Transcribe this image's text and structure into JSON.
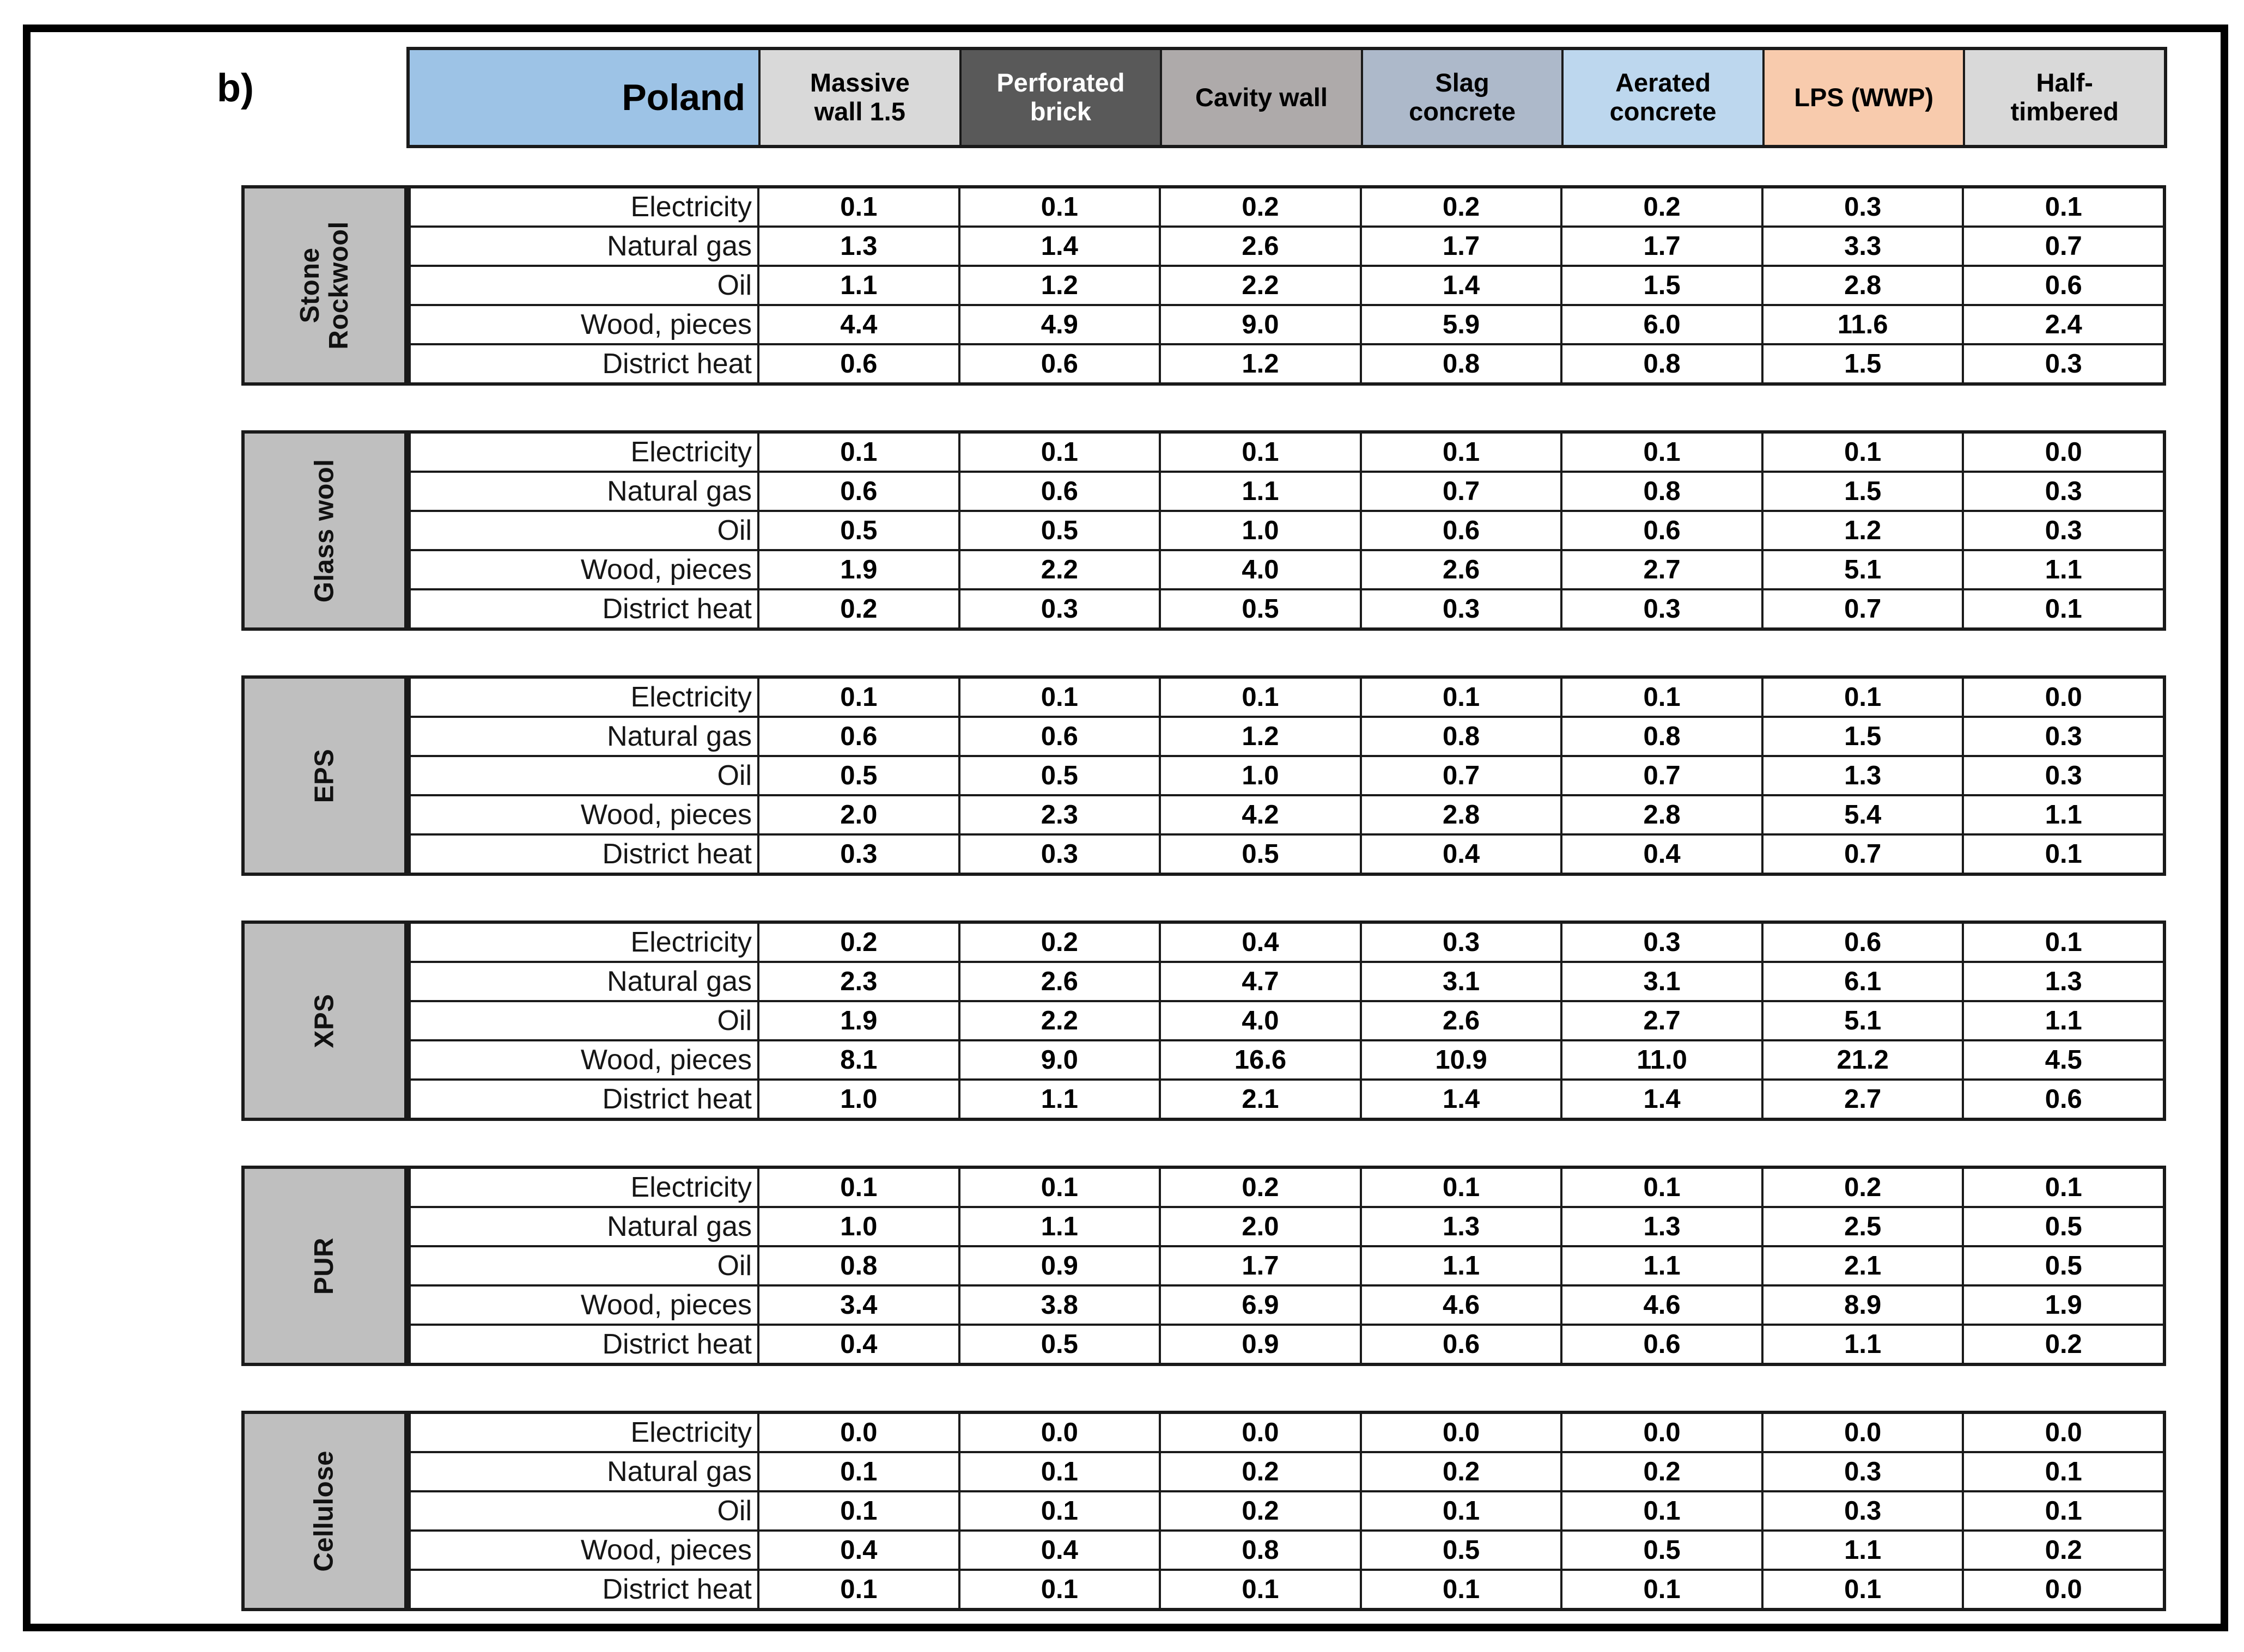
{
  "figure_label": "b)",
  "table": {
    "country": "Poland",
    "country_bg": "#9DC3E6",
    "wall_types": [
      {
        "label": "Massive\nwall 1.5",
        "bg": "#D9D9D9",
        "fg": "#000000"
      },
      {
        "label": "Perforated\nbrick",
        "bg": "#595959",
        "fg": "#FFFFFF"
      },
      {
        "label": "Cavity wall",
        "bg": "#AEAAAA",
        "fg": "#000000"
      },
      {
        "label": "Slag\nconcrete",
        "bg": "#ADB9CA",
        "fg": "#000000"
      },
      {
        "label": "Aerated\nconcrete",
        "bg": "#BDD7EE",
        "fg": "#000000"
      },
      {
        "label": "LPS (WWP)",
        "bg": "#F8CBAD",
        "fg": "#000000"
      },
      {
        "label": "Half-\ntimbered",
        "bg": "#D9D9D9",
        "fg": "#000000"
      }
    ],
    "energy_carriers": [
      "Electricity",
      "Natural gas",
      "Oil",
      "Wood, pieces",
      "District heat"
    ],
    "insulation_sections": [
      {
        "label": "Stone\nRockwool",
        "values": [
          [
            "0.1",
            "0.1",
            "0.2",
            "0.2",
            "0.2",
            "0.3",
            "0.1"
          ],
          [
            "1.3",
            "1.4",
            "2.6",
            "1.7",
            "1.7",
            "3.3",
            "0.7"
          ],
          [
            "1.1",
            "1.2",
            "2.2",
            "1.4",
            "1.5",
            "2.8",
            "0.6"
          ],
          [
            "4.4",
            "4.9",
            "9.0",
            "5.9",
            "6.0",
            "11.6",
            "2.4"
          ],
          [
            "0.6",
            "0.6",
            "1.2",
            "0.8",
            "0.8",
            "1.5",
            "0.3"
          ]
        ]
      },
      {
        "label": "Glass wool",
        "values": [
          [
            "0.1",
            "0.1",
            "0.1",
            "0.1",
            "0.1",
            "0.1",
            "0.0"
          ],
          [
            "0.6",
            "0.6",
            "1.1",
            "0.7",
            "0.8",
            "1.5",
            "0.3"
          ],
          [
            "0.5",
            "0.5",
            "1.0",
            "0.6",
            "0.6",
            "1.2",
            "0.3"
          ],
          [
            "1.9",
            "2.2",
            "4.0",
            "2.6",
            "2.7",
            "5.1",
            "1.1"
          ],
          [
            "0.2",
            "0.3",
            "0.5",
            "0.3",
            "0.3",
            "0.7",
            "0.1"
          ]
        ]
      },
      {
        "label": "EPS",
        "values": [
          [
            "0.1",
            "0.1",
            "0.1",
            "0.1",
            "0.1",
            "0.1",
            "0.0"
          ],
          [
            "0.6",
            "0.6",
            "1.2",
            "0.8",
            "0.8",
            "1.5",
            "0.3"
          ],
          [
            "0.5",
            "0.5",
            "1.0",
            "0.7",
            "0.7",
            "1.3",
            "0.3"
          ],
          [
            "2.0",
            "2.3",
            "4.2",
            "2.8",
            "2.8",
            "5.4",
            "1.1"
          ],
          [
            "0.3",
            "0.3",
            "0.5",
            "0.4",
            "0.4",
            "0.7",
            "0.1"
          ]
        ]
      },
      {
        "label": "XPS",
        "values": [
          [
            "0.2",
            "0.2",
            "0.4",
            "0.3",
            "0.3",
            "0.6",
            "0.1"
          ],
          [
            "2.3",
            "2.6",
            "4.7",
            "3.1",
            "3.1",
            "6.1",
            "1.3"
          ],
          [
            "1.9",
            "2.2",
            "4.0",
            "2.6",
            "2.7",
            "5.1",
            "1.1"
          ],
          [
            "8.1",
            "9.0",
            "16.6",
            "10.9",
            "11.0",
            "21.2",
            "4.5"
          ],
          [
            "1.0",
            "1.1",
            "2.1",
            "1.4",
            "1.4",
            "2.7",
            "0.6"
          ]
        ]
      },
      {
        "label": "PUR",
        "values": [
          [
            "0.1",
            "0.1",
            "0.2",
            "0.1",
            "0.1",
            "0.2",
            "0.1"
          ],
          [
            "1.0",
            "1.1",
            "2.0",
            "1.3",
            "1.3",
            "2.5",
            "0.5"
          ],
          [
            "0.8",
            "0.9",
            "1.7",
            "1.1",
            "1.1",
            "2.1",
            "0.5"
          ],
          [
            "3.4",
            "3.8",
            "6.9",
            "4.6",
            "4.6",
            "8.9",
            "1.9"
          ],
          [
            "0.4",
            "0.5",
            "0.9",
            "0.6",
            "0.6",
            "1.1",
            "0.2"
          ]
        ]
      },
      {
        "label": "Cellulose",
        "values": [
          [
            "0.0",
            "0.0",
            "0.0",
            "0.0",
            "0.0",
            "0.0",
            "0.0"
          ],
          [
            "0.1",
            "0.1",
            "0.2",
            "0.2",
            "0.2",
            "0.3",
            "0.1"
          ],
          [
            "0.1",
            "0.1",
            "0.2",
            "0.1",
            "0.1",
            "0.3",
            "0.1"
          ],
          [
            "0.4",
            "0.4",
            "0.8",
            "0.5",
            "0.5",
            "1.1",
            "0.2"
          ],
          [
            "0.1",
            "0.1",
            "0.1",
            "0.1",
            "0.1",
            "0.1",
            "0.0"
          ]
        ]
      }
    ]
  }
}
